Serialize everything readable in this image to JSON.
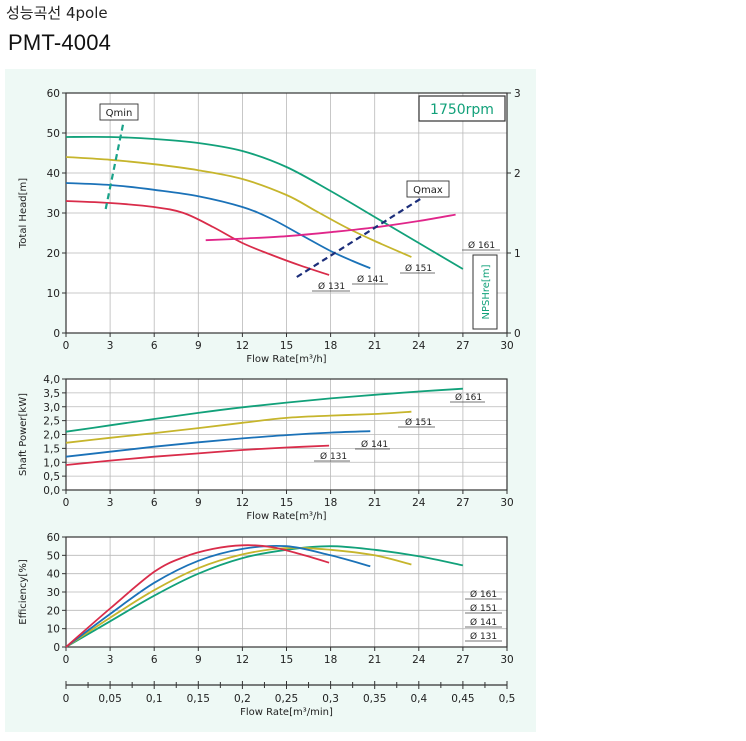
{
  "header": {
    "subtitle": "성능곡선 4pole",
    "model": "PMT-4004"
  },
  "colors": {
    "panel_bg": "#eef9f5",
    "d161": "#12a17a",
    "d151": "#c6b52c",
    "d141": "#1b72b8",
    "d131": "#d92c4a",
    "npsh": "#e0268a",
    "q_limits_min": "#1aa38a",
    "q_limits_max": "#1c2e7a"
  },
  "chart_data": [
    {
      "type": "line",
      "id": "head",
      "xlabel": "Flow Rate[m³/h]",
      "ylabel": "Total Head[m]",
      "y2label": "NPSHre[m]",
      "xlim": [
        0,
        30
      ],
      "ylim": [
        0,
        60
      ],
      "y2lim": [
        0,
        3
      ],
      "xticks": [
        "0",
        "3",
        "6",
        "9",
        "12",
        "15",
        "18",
        "21",
        "24",
        "27",
        "30"
      ],
      "yticks": [
        "0",
        "10",
        "20",
        "30",
        "40",
        "50",
        "60"
      ],
      "y2ticks": [
        "0",
        "1",
        "2",
        "3"
      ],
      "speed_label": "1750rpm",
      "series": [
        {
          "name": "Ø 161",
          "key": "d161",
          "x": [
            0,
            3,
            6,
            9,
            12,
            15,
            18,
            21,
            24,
            27
          ],
          "y": [
            49,
            49,
            48.5,
            47.5,
            45.5,
            41.5,
            35.5,
            29,
            22.5,
            16
          ]
        },
        {
          "name": "Ø 151",
          "key": "d151",
          "x": [
            0,
            3,
            6,
            9,
            12,
            15,
            17,
            19,
            21,
            23.5
          ],
          "y": [
            44,
            43.3,
            42.2,
            40.7,
            38.5,
            34.5,
            30.5,
            26.5,
            23,
            19
          ]
        },
        {
          "name": "Ø 141",
          "key": "d141",
          "x": [
            0,
            3,
            6,
            9,
            12,
            14,
            16,
            18,
            19.5,
            20.7
          ],
          "y": [
            37.5,
            37,
            35.8,
            34.2,
            31.5,
            28.5,
            24.5,
            20.5,
            18,
            16.2
          ]
        },
        {
          "name": "Ø 131",
          "key": "d131",
          "x": [
            0,
            3,
            6,
            8,
            10,
            12,
            14,
            16,
            17.9
          ],
          "y": [
            33,
            32.5,
            31.5,
            30,
            26.5,
            22.5,
            19.5,
            16.8,
            14.5
          ]
        }
      ],
      "npsh": {
        "x": [
          9.5,
          12,
          15,
          18,
          21,
          24,
          26.5
        ],
        "y": [
          1.16,
          1.18,
          1.21,
          1.26,
          1.32,
          1.4,
          1.48
        ]
      },
      "qmin": {
        "label": "Qmin",
        "x": [
          2.7,
          3.9
        ],
        "y": [
          31,
          52.5
        ]
      },
      "qmax": {
        "label": "Qmax",
        "x": [
          15.7,
          24.1
        ],
        "y": [
          14,
          33.5
        ]
      }
    },
    {
      "type": "line",
      "id": "power",
      "xlabel": "Flow Rate[m³/h]",
      "ylabel": "Shaft Power[kW]",
      "xlim": [
        0,
        30
      ],
      "ylim": [
        0,
        4
      ],
      "xticks": [
        "0",
        "3",
        "6",
        "9",
        "12",
        "15",
        "18",
        "21",
        "24",
        "27",
        "30"
      ],
      "yticks": [
        "0,0",
        "0,5",
        "1,0",
        "1,5",
        "2,0",
        "2,5",
        "3,0",
        "3,5",
        "4,0"
      ],
      "series": [
        {
          "name": "Ø 161",
          "key": "d161",
          "x": [
            0,
            3,
            6,
            9,
            12,
            15,
            18,
            21,
            24,
            27
          ],
          "y": [
            2.1,
            2.33,
            2.56,
            2.78,
            2.98,
            3.15,
            3.3,
            3.43,
            3.55,
            3.65
          ]
        },
        {
          "name": "Ø 151",
          "key": "d151",
          "x": [
            0,
            3,
            6,
            9,
            12,
            15,
            18,
            21,
            23.5
          ],
          "y": [
            1.7,
            1.88,
            2.05,
            2.23,
            2.42,
            2.6,
            2.68,
            2.74,
            2.82
          ]
        },
        {
          "name": "Ø 141",
          "key": "d141",
          "x": [
            0,
            3,
            6,
            9,
            12,
            15,
            18,
            20.7
          ],
          "y": [
            1.2,
            1.38,
            1.56,
            1.72,
            1.86,
            1.98,
            2.07,
            2.12
          ]
        },
        {
          "name": "Ø 131",
          "key": "d131",
          "x": [
            0,
            3,
            6,
            9,
            12,
            15,
            17.9
          ],
          "y": [
            0.9,
            1.06,
            1.2,
            1.32,
            1.44,
            1.53,
            1.6
          ]
        }
      ]
    },
    {
      "type": "line",
      "id": "efficiency",
      "xlabel": "Flow Rate[m³/min]",
      "ylabel": "Efficiency[%]",
      "xlim": [
        0,
        30
      ],
      "ylim": [
        0,
        60
      ],
      "xticks": [
        "0",
        "3",
        "6",
        "9",
        "12",
        "15",
        "18",
        "21",
        "24",
        "27",
        "30"
      ],
      "yticks": [
        "0",
        "10",
        "20",
        "30",
        "40",
        "50",
        "60"
      ],
      "x2ticks": [
        "0",
        "0,05",
        "0,1",
        "0,15",
        "0,2",
        "0,25",
        "0,3",
        "0,35",
        "0,4",
        "0,45",
        "0,5"
      ],
      "legend": [
        "Ø 161",
        "Ø 151",
        "Ø 141",
        "Ø 131"
      ],
      "series": [
        {
          "name": "Ø 161",
          "key": "d161",
          "x": [
            0,
            3,
            6,
            9,
            12,
            15,
            18,
            21,
            24,
            27
          ],
          "y": [
            0,
            14,
            28,
            40,
            48.5,
            53,
            55,
            53,
            49.5,
            44.5
          ]
        },
        {
          "name": "Ø 151",
          "key": "d151",
          "x": [
            0,
            3,
            6,
            9,
            12,
            15,
            18,
            21,
            23.5
          ],
          "y": [
            0,
            16,
            31,
            43,
            50.5,
            54,
            53,
            50,
            45
          ]
        },
        {
          "name": "Ø 141",
          "key": "d141",
          "x": [
            0,
            3,
            6,
            9,
            12,
            15,
            18,
            20.7
          ],
          "y": [
            0,
            18,
            35,
            47,
            53.5,
            55,
            50,
            44
          ]
        },
        {
          "name": "Ø 131",
          "key": "d131",
          "x": [
            0,
            3,
            6,
            8,
            10,
            12,
            14,
            16,
            17.9
          ],
          "y": [
            0,
            21,
            41,
            49,
            53.5,
            55.5,
            54.5,
            50.5,
            46
          ]
        }
      ]
    }
  ]
}
